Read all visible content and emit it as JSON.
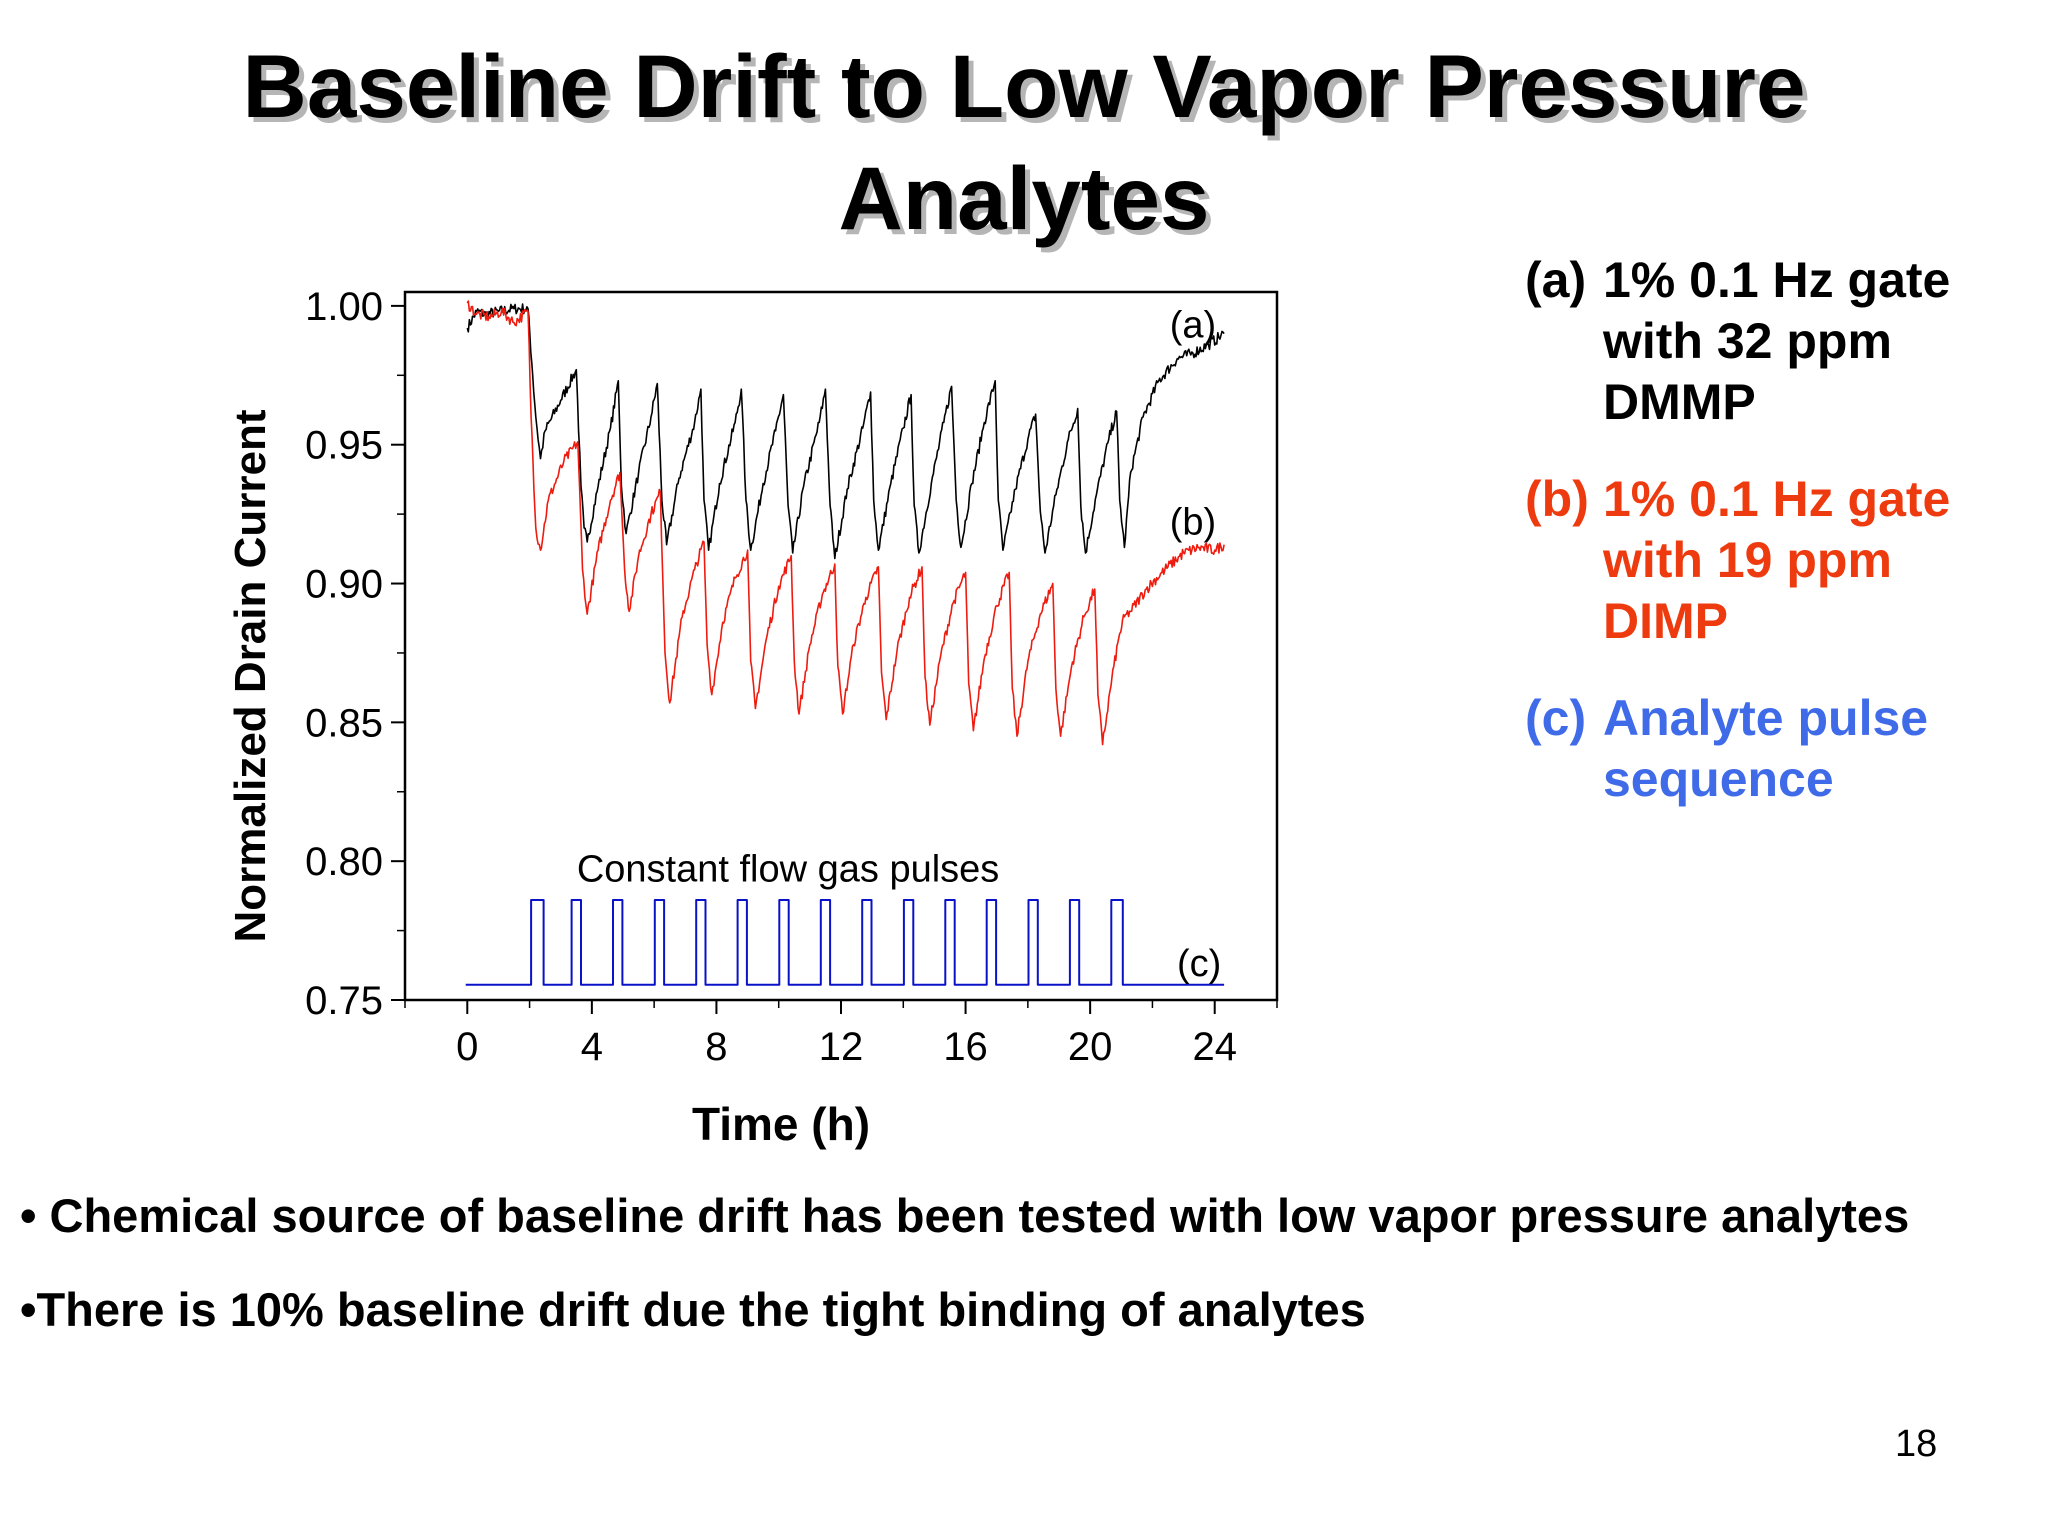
{
  "slide": {
    "title_lines": [
      "Baseline Drift to Low Vapor Pressure",
      "Analytes"
    ],
    "legend": [
      {
        "tag": "(a)",
        "text": "1% 0.1 Hz gate with 32 ppm DMMP",
        "color": "#000000"
      },
      {
        "tag": "(b)",
        "text": "1% 0.1 Hz gate with 19 ppm DIMP",
        "color": "#ee3a0f"
      },
      {
        "tag": "(c)",
        "text": "Analyte pulse sequence",
        "color": "#3f6be8"
      }
    ],
    "bullets": [
      "• Chemical source of baseline drift has been tested with low vapor pressure analytes",
      "•There is 10% baseline drift due the tight binding of analytes"
    ],
    "page_number": "18"
  },
  "chart_data": {
    "type": "line",
    "title": "",
    "xlabel": "Time (h)",
    "ylabel": "Normalized Drain Current",
    "xlim": [
      -2,
      26
    ],
    "ylim": [
      0.75,
      1.005
    ],
    "xticks": [
      0,
      4,
      8,
      12,
      16,
      20,
      24
    ],
    "xtick_labels": [
      "0",
      "4",
      "8",
      "12",
      "16",
      "20",
      "24"
    ],
    "yticks": [
      0.75,
      0.8,
      0.85,
      0.9,
      0.95,
      1.0
    ],
    "ytick_labels": [
      "0.75",
      "0.80",
      "0.85",
      "0.90",
      "0.95",
      "1.00"
    ],
    "grid": false,
    "annotations": [
      {
        "text": "(a)",
        "x": 23.3,
        "y": 0.993
      },
      {
        "text": "(b)",
        "x": 23.3,
        "y": 0.922
      },
      {
        "text": "(c)",
        "x": 23.5,
        "y": 0.763
      },
      {
        "text": "Constant flow gas pulses",
        "x": 10.3,
        "y": 0.797
      }
    ],
    "series": [
      {
        "label": "(a)",
        "color": "#000000",
        "points": [
          [
            0,
            0.992
          ],
          [
            0.3,
            0.998
          ],
          [
            0.6,
            0.997
          ],
          [
            1.0,
            0.998
          ],
          [
            1.5,
            0.999
          ],
          [
            1.95,
            0.999
          ],
          [
            2.1,
            0.975
          ],
          [
            2.2,
            0.96
          ],
          [
            2.35,
            0.945
          ],
          [
            2.5,
            0.955
          ],
          [
            3.0,
            0.966
          ],
          [
            3.5,
            0.977
          ],
          [
            3.65,
            0.935
          ],
          [
            3.75,
            0.92
          ],
          [
            3.85,
            0.915
          ],
          [
            4.2,
            0.935
          ],
          [
            4.6,
            0.956
          ],
          [
            4.85,
            0.973
          ],
          [
            4.95,
            0.935
          ],
          [
            5.1,
            0.918
          ],
          [
            5.5,
            0.94
          ],
          [
            5.9,
            0.96
          ],
          [
            6.1,
            0.972
          ],
          [
            6.25,
            0.93
          ],
          [
            6.4,
            0.914
          ],
          [
            6.8,
            0.938
          ],
          [
            7.3,
            0.958
          ],
          [
            7.5,
            0.97
          ],
          [
            7.6,
            0.93
          ],
          [
            7.75,
            0.912
          ],
          [
            8.1,
            0.936
          ],
          [
            8.6,
            0.958
          ],
          [
            8.8,
            0.97
          ],
          [
            8.95,
            0.93
          ],
          [
            9.1,
            0.912
          ],
          [
            9.5,
            0.936
          ],
          [
            9.9,
            0.955
          ],
          [
            10.15,
            0.968
          ],
          [
            10.3,
            0.928
          ],
          [
            10.45,
            0.911
          ],
          [
            10.8,
            0.935
          ],
          [
            11.3,
            0.958
          ],
          [
            11.5,
            0.97
          ],
          [
            11.65,
            0.928
          ],
          [
            11.8,
            0.909
          ],
          [
            12.2,
            0.934
          ],
          [
            12.7,
            0.956
          ],
          [
            12.95,
            0.969
          ],
          [
            13.05,
            0.93
          ],
          [
            13.2,
            0.912
          ],
          [
            13.6,
            0.936
          ],
          [
            14.0,
            0.956
          ],
          [
            14.25,
            0.968
          ],
          [
            14.35,
            0.928
          ],
          [
            14.5,
            0.911
          ],
          [
            14.9,
            0.936
          ],
          [
            15.3,
            0.958
          ],
          [
            15.55,
            0.971
          ],
          [
            15.7,
            0.93
          ],
          [
            15.85,
            0.913
          ],
          [
            16.2,
            0.936
          ],
          [
            16.6,
            0.958
          ],
          [
            16.95,
            0.973
          ],
          [
            17.05,
            0.93
          ],
          [
            17.2,
            0.912
          ],
          [
            17.6,
            0.934
          ],
          [
            18.0,
            0.952
          ],
          [
            18.25,
            0.961
          ],
          [
            18.4,
            0.926
          ],
          [
            18.55,
            0.911
          ],
          [
            18.9,
            0.932
          ],
          [
            19.3,
            0.952
          ],
          [
            19.6,
            0.963
          ],
          [
            19.7,
            0.928
          ],
          [
            19.85,
            0.911
          ],
          [
            20.2,
            0.932
          ],
          [
            20.6,
            0.952
          ],
          [
            20.85,
            0.962
          ],
          [
            20.95,
            0.93
          ],
          [
            21.1,
            0.913
          ],
          [
            21.3,
            0.94
          ],
          [
            21.7,
            0.96
          ],
          [
            22.2,
            0.973
          ],
          [
            22.8,
            0.981
          ],
          [
            23.3,
            0.983
          ],
          [
            23.8,
            0.986
          ],
          [
            24.3,
            0.99
          ]
        ]
      },
      {
        "label": "(b)",
        "color": "#ee1b0f",
        "points": [
          [
            0,
            1.001
          ],
          [
            0.3,
            0.997
          ],
          [
            0.7,
            0.996
          ],
          [
            1.1,
            0.998
          ],
          [
            1.5,
            0.994
          ],
          [
            1.95,
            0.998
          ],
          [
            2.05,
            0.96
          ],
          [
            2.2,
            0.92
          ],
          [
            2.35,
            0.912
          ],
          [
            2.6,
            0.93
          ],
          [
            3.1,
            0.944
          ],
          [
            3.55,
            0.951
          ],
          [
            3.7,
            0.905
          ],
          [
            3.85,
            0.889
          ],
          [
            4.2,
            0.912
          ],
          [
            4.6,
            0.93
          ],
          [
            4.9,
            0.94
          ],
          [
            5.05,
            0.905
          ],
          [
            5.2,
            0.89
          ],
          [
            5.5,
            0.91
          ],
          [
            5.9,
            0.925
          ],
          [
            6.2,
            0.933
          ],
          [
            6.35,
            0.875
          ],
          [
            6.5,
            0.857
          ],
          [
            6.9,
            0.888
          ],
          [
            7.3,
            0.905
          ],
          [
            7.6,
            0.915
          ],
          [
            7.7,
            0.878
          ],
          [
            7.85,
            0.86
          ],
          [
            8.2,
            0.886
          ],
          [
            8.6,
            0.902
          ],
          [
            9.0,
            0.912
          ],
          [
            9.1,
            0.872
          ],
          [
            9.25,
            0.855
          ],
          [
            9.6,
            0.88
          ],
          [
            10.0,
            0.899
          ],
          [
            10.4,
            0.91
          ],
          [
            10.5,
            0.872
          ],
          [
            10.65,
            0.853
          ],
          [
            11.0,
            0.878
          ],
          [
            11.4,
            0.896
          ],
          [
            11.8,
            0.907
          ],
          [
            11.9,
            0.87
          ],
          [
            12.05,
            0.853
          ],
          [
            12.4,
            0.878
          ],
          [
            12.8,
            0.895
          ],
          [
            13.2,
            0.906
          ],
          [
            13.3,
            0.868
          ],
          [
            13.45,
            0.851
          ],
          [
            13.8,
            0.876
          ],
          [
            14.2,
            0.895
          ],
          [
            14.6,
            0.906
          ],
          [
            14.7,
            0.866
          ],
          [
            14.85,
            0.849
          ],
          [
            15.2,
            0.874
          ],
          [
            15.6,
            0.893
          ],
          [
            16.0,
            0.904
          ],
          [
            16.1,
            0.864
          ],
          [
            16.25,
            0.847
          ],
          [
            16.6,
            0.873
          ],
          [
            17.0,
            0.892
          ],
          [
            17.4,
            0.904
          ],
          [
            17.5,
            0.862
          ],
          [
            17.65,
            0.845
          ],
          [
            18.0,
            0.872
          ],
          [
            18.4,
            0.889
          ],
          [
            18.8,
            0.9
          ],
          [
            18.9,
            0.862
          ],
          [
            19.05,
            0.845
          ],
          [
            19.4,
            0.87
          ],
          [
            19.8,
            0.888
          ],
          [
            20.15,
            0.898
          ],
          [
            20.25,
            0.86
          ],
          [
            20.4,
            0.842
          ],
          [
            20.7,
            0.866
          ],
          [
            20.95,
            0.882
          ],
          [
            21.1,
            0.888
          ],
          [
            21.3,
            0.89
          ],
          [
            21.8,
            0.898
          ],
          [
            22.4,
            0.905
          ],
          [
            23.0,
            0.911
          ],
          [
            23.5,
            0.913
          ],
          [
            24.0,
            0.912
          ],
          [
            24.3,
            0.914
          ]
        ]
      },
      {
        "label": "(c)",
        "color": "#0a12c8",
        "points": [
          [
            -0.05,
            0.7555
          ],
          [
            2.05,
            0.7555
          ],
          [
            2.05,
            0.786
          ],
          [
            2.45,
            0.786
          ],
          [
            2.45,
            0.7555
          ],
          [
            3.35,
            0.7555
          ],
          [
            3.35,
            0.786
          ],
          [
            3.65,
            0.786
          ],
          [
            3.65,
            0.7555
          ],
          [
            4.68,
            0.7555
          ],
          [
            4.68,
            0.786
          ],
          [
            4.98,
            0.786
          ],
          [
            4.98,
            0.7555
          ],
          [
            6.02,
            0.7555
          ],
          [
            6.02,
            0.786
          ],
          [
            6.32,
            0.786
          ],
          [
            6.32,
            0.7555
          ],
          [
            7.35,
            0.7555
          ],
          [
            7.35,
            0.786
          ],
          [
            7.65,
            0.786
          ],
          [
            7.65,
            0.7555
          ],
          [
            8.68,
            0.7555
          ],
          [
            8.68,
            0.786
          ],
          [
            8.98,
            0.786
          ],
          [
            8.98,
            0.7555
          ],
          [
            10.02,
            0.7555
          ],
          [
            10.02,
            0.786
          ],
          [
            10.32,
            0.786
          ],
          [
            10.32,
            0.7555
          ],
          [
            11.35,
            0.7555
          ],
          [
            11.35,
            0.786
          ],
          [
            11.65,
            0.786
          ],
          [
            11.65,
            0.7555
          ],
          [
            12.68,
            0.7555
          ],
          [
            12.68,
            0.786
          ],
          [
            12.98,
            0.786
          ],
          [
            12.98,
            0.7555
          ],
          [
            14.02,
            0.7555
          ],
          [
            14.02,
            0.786
          ],
          [
            14.32,
            0.786
          ],
          [
            14.32,
            0.7555
          ],
          [
            15.35,
            0.7555
          ],
          [
            15.35,
            0.786
          ],
          [
            15.65,
            0.786
          ],
          [
            15.65,
            0.7555
          ],
          [
            16.68,
            0.7555
          ],
          [
            16.68,
            0.786
          ],
          [
            16.98,
            0.786
          ],
          [
            16.98,
            0.7555
          ],
          [
            18.02,
            0.7555
          ],
          [
            18.02,
            0.786
          ],
          [
            18.32,
            0.786
          ],
          [
            18.32,
            0.7555
          ],
          [
            19.35,
            0.7555
          ],
          [
            19.35,
            0.786
          ],
          [
            19.65,
            0.786
          ],
          [
            19.65,
            0.7555
          ],
          [
            20.68,
            0.7555
          ],
          [
            20.68,
            0.786
          ],
          [
            21.05,
            0.786
          ],
          [
            21.05,
            0.7555
          ],
          [
            24.3,
            0.7555
          ]
        ]
      }
    ]
  }
}
